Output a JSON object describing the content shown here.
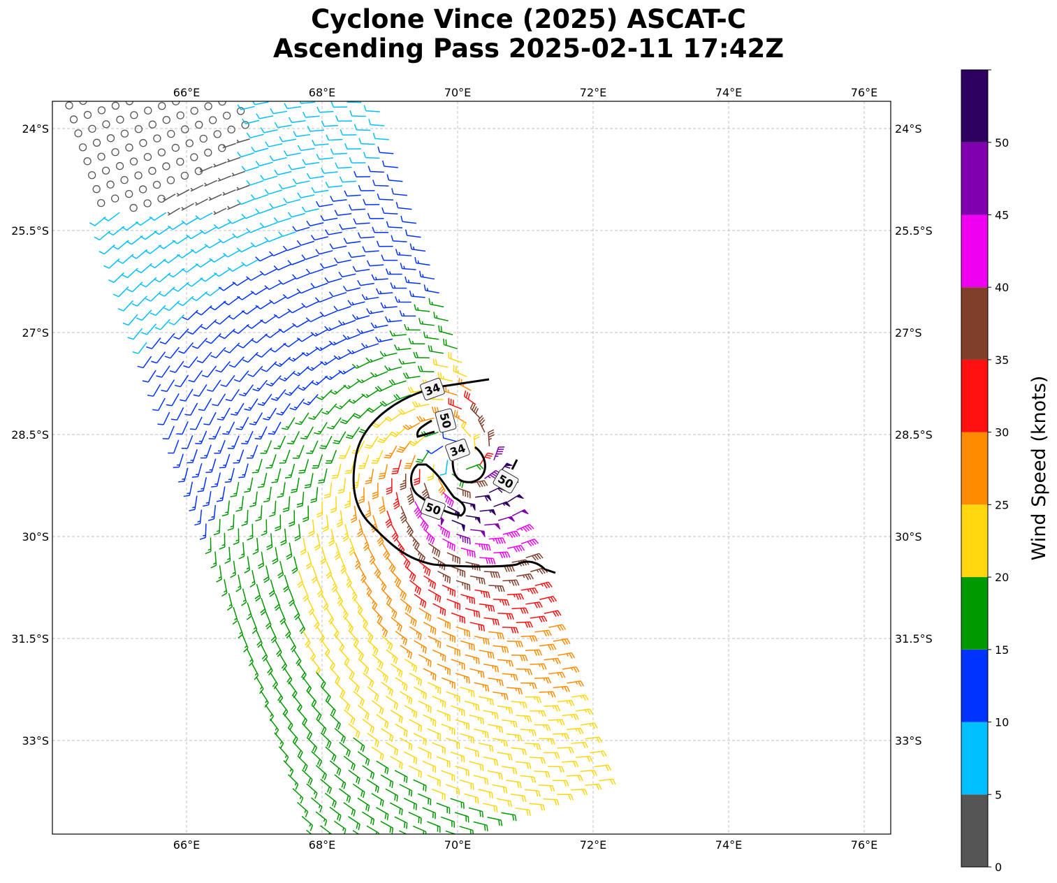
{
  "title": {
    "line1": "Cyclone Vince (2025) ASCAT-C",
    "line2": "Ascending Pass 2025-02-11 17:42Z"
  },
  "chart_data": {
    "type": "barbs",
    "title": "Cyclone Vince (2025) ASCAT-C Ascending Pass 2025-02-11 17:42Z",
    "xlim": [
      64.02,
      76.39
    ],
    "ylim": [
      -34.38,
      -23.6
    ],
    "x_ticks": [
      {
        "value": 66,
        "label": "66°E"
      },
      {
        "value": 68,
        "label": "68°E"
      },
      {
        "value": 70,
        "label": "70°E"
      },
      {
        "value": 72,
        "label": "72°E"
      },
      {
        "value": 74,
        "label": "74°E"
      },
      {
        "value": 76,
        "label": "76°E"
      }
    ],
    "y_ticks": [
      {
        "value": -24,
        "label": "24°S"
      },
      {
        "value": -25.5,
        "label": "25.5°S"
      },
      {
        "value": -27,
        "label": "27°S"
      },
      {
        "value": -28.5,
        "label": "28.5°S"
      },
      {
        "value": -30,
        "label": "30°S"
      },
      {
        "value": -31.5,
        "label": "31.5°S"
      },
      {
        "value": -33,
        "label": "33°S"
      }
    ],
    "grid": true,
    "center": {
      "lon": 70.0,
      "lat": -28.85
    },
    "contours": [
      {
        "level": 34,
        "label": "34"
      },
      {
        "level": 50,
        "label": "50"
      },
      {
        "level": 34,
        "label": "34"
      },
      {
        "level": 50,
        "label": "50"
      },
      {
        "level": 50,
        "label": "50"
      }
    ],
    "colorbar": {
      "label": "Wind Speed (knots)",
      "range": [
        0,
        55
      ],
      "ticks": [
        "0",
        "5",
        "10",
        "15",
        "20",
        "25",
        "30",
        "35",
        "40",
        "45",
        "50"
      ],
      "bins": [
        {
          "min": 0,
          "max": 5,
          "color": "#555555"
        },
        {
          "min": 5,
          "max": 10,
          "color": "#00bfff"
        },
        {
          "min": 10,
          "max": 15,
          "color": "#0033ff"
        },
        {
          "min": 15,
          "max": 20,
          "color": "#009900"
        },
        {
          "min": 20,
          "max": 25,
          "color": "#ffd70f"
        },
        {
          "min": 25,
          "max": 30,
          "color": "#ff8c00"
        },
        {
          "min": 30,
          "max": 35,
          "color": "#ff1010"
        },
        {
          "min": 35,
          "max": 40,
          "color": "#7f3f2a"
        },
        {
          "min": 40,
          "max": 45,
          "color": "#f000f0"
        },
        {
          "min": 45,
          "max": 50,
          "color": "#8000b0"
        },
        {
          "min": 50,
          "max": 55,
          "color": "#2e0060"
        }
      ]
    }
  }
}
